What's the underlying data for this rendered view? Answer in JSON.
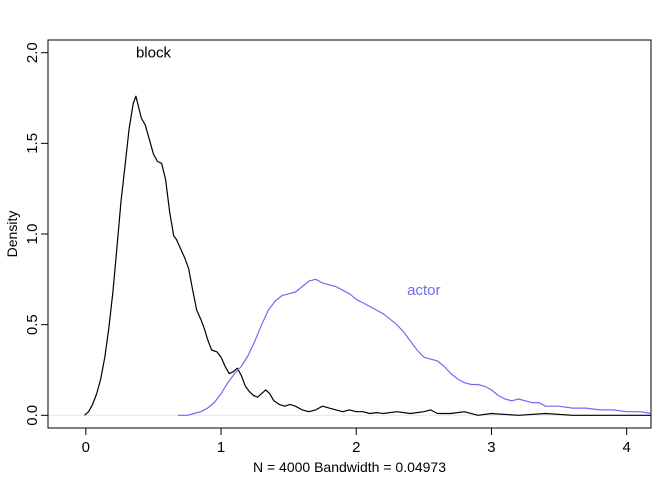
{
  "chart_data": {
    "type": "line",
    "title": "",
    "xlabel": "N = 4000   Bandwidth = 0.04973",
    "ylabel": "Density",
    "xlim": [
      -0.28,
      4.18
    ],
    "ylim": [
      -0.07,
      2.07
    ],
    "x_ticks": [
      0,
      1,
      2,
      3,
      4
    ],
    "x_tick_labels": [
      "0",
      "1",
      "2",
      "3",
      "4"
    ],
    "y_ticks": [
      0.0,
      0.5,
      1.0,
      1.5,
      2.0
    ],
    "y_tick_labels": [
      "0.0",
      "0.5",
      "1.0",
      "1.5",
      "2.0"
    ],
    "grid": false,
    "legend": "none",
    "zero_line_color": "#e6e6e6",
    "series": [
      {
        "name": "block",
        "color": "#000000",
        "label_at": [
          0.5,
          2.0
        ],
        "points": [
          [
            -0.01,
            0.0
          ],
          [
            0.02,
            0.02
          ],
          [
            0.05,
            0.06
          ],
          [
            0.08,
            0.12
          ],
          [
            0.11,
            0.2
          ],
          [
            0.14,
            0.32
          ],
          [
            0.17,
            0.48
          ],
          [
            0.2,
            0.68
          ],
          [
            0.23,
            0.93
          ],
          [
            0.26,
            1.18
          ],
          [
            0.29,
            1.38
          ],
          [
            0.32,
            1.58
          ],
          [
            0.35,
            1.72
          ],
          [
            0.37,
            1.76
          ],
          [
            0.39,
            1.7
          ],
          [
            0.41,
            1.64
          ],
          [
            0.44,
            1.6
          ],
          [
            0.47,
            1.52
          ],
          [
            0.5,
            1.44
          ],
          [
            0.53,
            1.4
          ],
          [
            0.56,
            1.39
          ],
          [
            0.59,
            1.3
          ],
          [
            0.62,
            1.12
          ],
          [
            0.65,
            0.99
          ],
          [
            0.67,
            0.97
          ],
          [
            0.7,
            0.92
          ],
          [
            0.73,
            0.87
          ],
          [
            0.76,
            0.81
          ],
          [
            0.79,
            0.69
          ],
          [
            0.82,
            0.58
          ],
          [
            0.85,
            0.53
          ],
          [
            0.88,
            0.47
          ],
          [
            0.9,
            0.42
          ],
          [
            0.93,
            0.36
          ],
          [
            0.97,
            0.35
          ],
          [
            1.0,
            0.32
          ],
          [
            1.03,
            0.27
          ],
          [
            1.06,
            0.23
          ],
          [
            1.09,
            0.24
          ],
          [
            1.12,
            0.26
          ],
          [
            1.15,
            0.22
          ],
          [
            1.18,
            0.16
          ],
          [
            1.21,
            0.13
          ],
          [
            1.24,
            0.11
          ],
          [
            1.27,
            0.1
          ],
          [
            1.3,
            0.12
          ],
          [
            1.33,
            0.14
          ],
          [
            1.36,
            0.12
          ],
          [
            1.39,
            0.08
          ],
          [
            1.43,
            0.06
          ],
          [
            1.47,
            0.05
          ],
          [
            1.51,
            0.06
          ],
          [
            1.55,
            0.05
          ],
          [
            1.6,
            0.03
          ],
          [
            1.65,
            0.02
          ],
          [
            1.7,
            0.03
          ],
          [
            1.75,
            0.05
          ],
          [
            1.8,
            0.04
          ],
          [
            1.85,
            0.03
          ],
          [
            1.9,
            0.02
          ],
          [
            1.95,
            0.03
          ],
          [
            2.0,
            0.02
          ],
          [
            2.05,
            0.02
          ],
          [
            2.1,
            0.01
          ],
          [
            2.15,
            0.015
          ],
          [
            2.2,
            0.01
          ],
          [
            2.3,
            0.02
          ],
          [
            2.4,
            0.01
          ],
          [
            2.5,
            0.02
          ],
          [
            2.55,
            0.03
          ],
          [
            2.6,
            0.01
          ],
          [
            2.7,
            0.01
          ],
          [
            2.8,
            0.02
          ],
          [
            2.9,
            0.0
          ],
          [
            3.0,
            0.01
          ],
          [
            3.2,
            0.0
          ],
          [
            3.4,
            0.01
          ],
          [
            3.6,
            0.0
          ],
          [
            3.8,
            0.0
          ],
          [
            4.0,
            0.0
          ],
          [
            4.18,
            0.0
          ]
        ]
      },
      {
        "name": "actor",
        "color": "#6e6cf5",
        "label_at": [
          2.5,
          0.69
        ],
        "points": [
          [
            0.68,
            0.0
          ],
          [
            0.75,
            0.0
          ],
          [
            0.8,
            0.01
          ],
          [
            0.85,
            0.02
          ],
          [
            0.9,
            0.04
          ],
          [
            0.95,
            0.07
          ],
          [
            1.0,
            0.12
          ],
          [
            1.05,
            0.18
          ],
          [
            1.1,
            0.23
          ],
          [
            1.15,
            0.27
          ],
          [
            1.2,
            0.33
          ],
          [
            1.25,
            0.41
          ],
          [
            1.3,
            0.5
          ],
          [
            1.35,
            0.58
          ],
          [
            1.4,
            0.63
          ],
          [
            1.45,
            0.66
          ],
          [
            1.5,
            0.67
          ],
          [
            1.55,
            0.68
          ],
          [
            1.6,
            0.71
          ],
          [
            1.65,
            0.74
          ],
          [
            1.7,
            0.75
          ],
          [
            1.75,
            0.73
          ],
          [
            1.8,
            0.72
          ],
          [
            1.85,
            0.71
          ],
          [
            1.9,
            0.69
          ],
          [
            1.95,
            0.67
          ],
          [
            2.0,
            0.64
          ],
          [
            2.05,
            0.62
          ],
          [
            2.1,
            0.6
          ],
          [
            2.15,
            0.58
          ],
          [
            2.2,
            0.56
          ],
          [
            2.25,
            0.53
          ],
          [
            2.3,
            0.5
          ],
          [
            2.35,
            0.46
          ],
          [
            2.4,
            0.41
          ],
          [
            2.45,
            0.36
          ],
          [
            2.5,
            0.32
          ],
          [
            2.55,
            0.31
          ],
          [
            2.6,
            0.3
          ],
          [
            2.65,
            0.27
          ],
          [
            2.7,
            0.23
          ],
          [
            2.75,
            0.2
          ],
          [
            2.8,
            0.18
          ],
          [
            2.85,
            0.17
          ],
          [
            2.9,
            0.17
          ],
          [
            2.95,
            0.16
          ],
          [
            3.0,
            0.14
          ],
          [
            3.05,
            0.11
          ],
          [
            3.1,
            0.09
          ],
          [
            3.15,
            0.08
          ],
          [
            3.2,
            0.09
          ],
          [
            3.25,
            0.08
          ],
          [
            3.3,
            0.07
          ],
          [
            3.35,
            0.07
          ],
          [
            3.4,
            0.05
          ],
          [
            3.45,
            0.05
          ],
          [
            3.5,
            0.05
          ],
          [
            3.6,
            0.04
          ],
          [
            3.7,
            0.04
          ],
          [
            3.8,
            0.03
          ],
          [
            3.9,
            0.03
          ],
          [
            4.0,
            0.02
          ],
          [
            4.1,
            0.02
          ],
          [
            4.18,
            0.01
          ]
        ]
      }
    ]
  }
}
